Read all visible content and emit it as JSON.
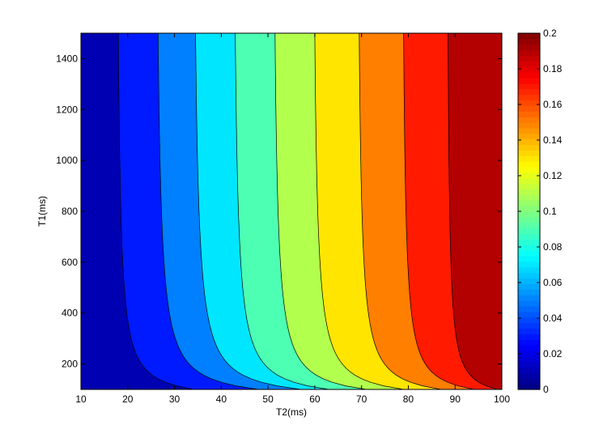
{
  "chart_data": {
    "type": "contour",
    "xlabel": "T2(ms)",
    "ylabel": "T1(ms)",
    "xlim": [
      10,
      100
    ],
    "ylim": [
      100,
      1500
    ],
    "x_ticks": [
      "10",
      "20",
      "30",
      "40",
      "50",
      "60",
      "70",
      "80",
      "90",
      "100"
    ],
    "y_ticks": [
      "200",
      "400",
      "600",
      "800",
      "1000",
      "1200",
      "1400"
    ],
    "colorbar": {
      "range": [
        0,
        0.2
      ],
      "ticks": [
        "0",
        "0.02",
        "0.04",
        "0.06",
        "0.08",
        "0.1",
        "0.12",
        "0.14",
        "0.16",
        "0.18",
        "0.2"
      ],
      "colormap": "jet"
    },
    "contour_levels": [
      0.02,
      0.04,
      0.06,
      0.08,
      0.1,
      0.12,
      0.14,
      0.16,
      0.18
    ],
    "level_crossings": [
      {
        "level": 0.02,
        "t2_at_t1_1500": 18,
        "t2_at_t1_100": 34
      },
      {
        "level": 0.04,
        "t2_at_t1_1500": 26.5,
        "t2_at_t1_100": 48
      },
      {
        "level": 0.06,
        "t2_at_t1_1500": 34.5,
        "t2_at_t1_100": 57
      },
      {
        "level": 0.08,
        "t2_at_t1_1500": 43,
        "t2_at_t1_100": 63
      },
      {
        "level": 0.1,
        "t2_at_t1_1500": 51.5,
        "t2_at_t1_100": 71
      },
      {
        "level": 0.12,
        "t2_at_t1_1500": 60,
        "t2_at_t1_100": 79
      },
      {
        "level": 0.14,
        "t2_at_t1_1500": 69.5,
        "t2_at_t1_100": 87
      },
      {
        "level": 0.16,
        "t2_at_t1_1500": 79,
        "t2_at_t1_100": 94
      },
      {
        "level": 0.18,
        "t2_at_t1_1500": 88.5,
        "t2_at_t1_100": 99
      }
    ]
  }
}
